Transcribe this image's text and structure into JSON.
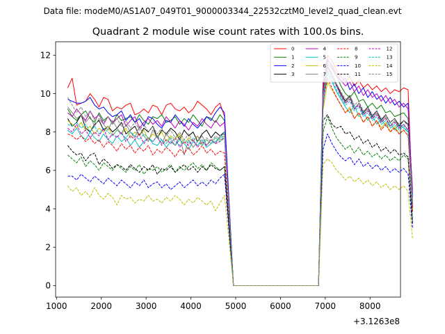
{
  "chart_data": {
    "type": "line",
    "suptitle": "Data file: modeM0/AS1A07_049T01_9000003344_22532cztM0_level2_quad_clean.evt",
    "title": "Quadrant 2 module wise count rates with 100.0s bins.",
    "xlabel": "",
    "ylabel": "",
    "x_offset_label": "+3.1263e8",
    "xlim": [
      980,
      8680
    ],
    "ylim": [
      -0.6,
      12.7
    ],
    "xticks": [
      1000,
      2000,
      3000,
      4000,
      5000,
      6000,
      7000,
      8000
    ],
    "xtick_labels": [
      "1000",
      "2000",
      "3000",
      "4000",
      "5000",
      "6000",
      "7000",
      "8000"
    ],
    "yticks": [
      0,
      2,
      4,
      6,
      8,
      10,
      12
    ],
    "ytick_labels": [
      "0",
      "2",
      "4",
      "6",
      "8",
      "10",
      "12"
    ],
    "legend_position": "top-right",
    "legend_columns": 4,
    "x_start": 1250,
    "x_step": 100,
    "gap_start": 4950,
    "gap_end": 6850,
    "series": [
      {
        "name": "0",
        "color": "#ff0000",
        "dash": "solid",
        "block1_values": [
          10.3,
          10.8,
          9.4,
          9.5,
          9.6,
          10.0,
          9.7,
          9.3,
          9.8,
          9.7,
          9.1,
          9.3,
          9.2,
          9.4,
          9.5,
          8.9,
          9.0,
          9.2,
          9.0,
          9.4,
          9.3,
          8.9,
          9.4,
          9.5,
          9.2,
          9.1,
          9.3,
          9.0,
          9.2,
          9.6,
          9.4,
          9.2,
          8.9,
          9.3,
          9.5,
          8.8
        ],
        "block2_values": [
          10.2,
          12.0,
          11.7,
          11.2,
          10.9,
          10.6,
          10.9,
          10.4,
          10.7,
          10.3,
          10.5,
          10.2,
          10.4,
          10.1,
          10.3,
          10.0,
          10.2,
          10.1,
          10.3,
          10.2,
          4.0
        ]
      },
      {
        "name": "1",
        "color": "#008000",
        "dash": "solid",
        "block1_values": [
          9.2,
          8.8,
          8.6,
          8.9,
          9.1,
          8.7,
          8.5,
          9.0,
          8.6,
          8.8,
          8.4,
          8.9,
          8.6,
          8.7,
          8.8,
          8.5,
          8.9,
          8.6,
          8.4,
          8.8,
          8.7,
          8.9,
          8.5,
          8.6,
          8.8,
          8.4,
          8.7,
          8.5,
          8.9,
          8.6,
          8.3,
          8.8,
          8.7,
          8.5,
          8.9,
          8.6
        ],
        "block2_values": [
          10.0,
          11.6,
          11.3,
          10.9,
          10.4,
          10.0,
          9.8,
          10.1,
          9.6,
          9.7,
          9.3,
          9.5,
          9.2,
          9.4,
          9.0,
          9.1,
          8.8,
          8.9,
          9.0,
          8.7,
          5.0
        ]
      },
      {
        "name": "2",
        "color": "#0000ff",
        "dash": "solid",
        "block1_values": [
          9.7,
          9.6,
          9.5,
          9.5,
          9.6,
          9.8,
          9.4,
          9.2,
          9.3,
          9.0,
          8.8,
          8.9,
          9.1,
          8.6,
          8.9,
          8.5,
          8.7,
          8.3,
          8.8,
          8.7,
          8.4,
          8.2,
          8.6,
          8.5,
          8.9,
          8.6,
          8.3,
          8.7,
          8.4,
          8.2,
          8.5,
          8.8,
          8.6,
          9.0,
          9.3,
          9.0
        ],
        "block2_values": [
          10.6,
          11.8,
          11.4,
          11.0,
          10.6,
          10.8,
          10.2,
          10.5,
          10.0,
          10.3,
          9.8,
          10.1,
          9.7,
          9.9,
          9.5,
          9.8,
          9.4,
          9.6,
          9.3,
          9.5,
          4.6
        ]
      },
      {
        "name": "3",
        "color": "#000000",
        "dash": "solid",
        "block1_values": [
          8.7,
          8.3,
          8.5,
          8.9,
          8.2,
          8.0,
          8.4,
          8.6,
          8.1,
          8.3,
          8.0,
          8.2,
          8.5,
          7.9,
          8.1,
          8.3,
          7.8,
          8.2,
          8.0,
          8.3,
          7.7,
          8.1,
          7.9,
          8.2,
          8.0,
          7.6,
          8.1,
          7.8,
          8.0,
          7.5,
          7.9,
          8.1,
          7.7,
          8.0,
          7.8,
          8.0
        ],
        "block2_values": [
          9.4,
          11.4,
          11.0,
          10.5,
          10.0,
          9.6,
          9.9,
          9.2,
          9.5,
          9.0,
          9.3,
          8.8,
          9.1,
          8.6,
          8.9,
          8.5,
          8.7,
          8.3,
          8.6,
          8.4,
          4.2
        ]
      },
      {
        "name": "4",
        "color": "#bf00bf",
        "dash": "solid",
        "block1_values": [
          9.0,
          8.8,
          9.2,
          8.9,
          8.6,
          9.1,
          8.7,
          8.9,
          8.4,
          8.8,
          8.5,
          8.7,
          8.9,
          8.3,
          8.6,
          8.8,
          8.2,
          8.5,
          8.7,
          8.4,
          8.6,
          8.3,
          8.8,
          8.5,
          8.2,
          8.6,
          8.4,
          8.1,
          8.5,
          8.3,
          8.7,
          8.4,
          8.2,
          8.6,
          8.3,
          8.5
        ],
        "block2_values": [
          10.5,
          11.7,
          11.5,
          11.0,
          10.7,
          10.4,
          10.6,
          10.1,
          10.4,
          9.9,
          10.2,
          9.8,
          10.0,
          9.6,
          9.9,
          9.5,
          9.7,
          9.3,
          9.5,
          9.2,
          4.8
        ]
      },
      {
        "name": "5",
        "color": "#00bfbf",
        "dash": "solid",
        "block1_values": [
          8.1,
          7.9,
          8.2,
          7.8,
          7.6,
          8.0,
          7.7,
          7.5,
          7.9,
          7.6,
          7.4,
          7.8,
          7.5,
          7.7,
          7.3,
          7.6,
          7.2,
          7.5,
          7.7,
          7.4,
          7.3,
          7.6,
          7.2,
          7.5,
          7.3,
          7.6,
          7.4,
          7.1,
          7.5,
          7.3,
          7.6,
          7.2,
          7.4,
          7.5,
          7.7,
          8.0
        ],
        "block2_values": [
          9.5,
          11.0,
          10.6,
          10.1,
          9.7,
          9.3,
          9.0,
          9.4,
          8.8,
          9.1,
          8.6,
          8.9,
          8.4,
          8.7,
          8.3,
          8.5,
          8.1,
          8.4,
          8.2,
          8.0,
          4.4
        ]
      },
      {
        "name": "6",
        "color": "#bfbf00",
        "dash": "solid",
        "block1_values": [
          8.6,
          8.4,
          8.2,
          8.5,
          8.1,
          8.3,
          7.9,
          8.2,
          8.0,
          8.3,
          7.8,
          8.1,
          7.9,
          8.2,
          7.7,
          8.0,
          7.8,
          8.1,
          7.6,
          7.9,
          7.7,
          8.0,
          7.5,
          7.8,
          7.6,
          7.9,
          7.4,
          7.7,
          7.5,
          7.8,
          7.3,
          7.6,
          7.4,
          7.7,
          7.5,
          7.8
        ],
        "block2_values": [
          9.1,
          10.6,
          10.2,
          9.8,
          9.4,
          9.0,
          9.3,
          8.7,
          9.0,
          8.5,
          8.8,
          8.3,
          8.6,
          8.2,
          8.5,
          8.0,
          8.3,
          7.9,
          8.1,
          7.8,
          4.0
        ]
      },
      {
        "name": "7",
        "color": "#808080",
        "dash": "solid",
        "block1_values": [
          9.3,
          9.0,
          8.7,
          8.9,
          8.5,
          8.8,
          8.3,
          8.7,
          8.4,
          8.1,
          8.6,
          8.2,
          7.9,
          8.4,
          8.0,
          7.7,
          8.3,
          7.8,
          7.5,
          8.1,
          7.7,
          7.4,
          7.9,
          7.6,
          7.3,
          7.8,
          6.8,
          7.6,
          7.2,
          7.5,
          7.8,
          7.3,
          7.6,
          7.4,
          7.8,
          7.9
        ],
        "block2_values": [
          9.8,
          11.2,
          10.8,
          10.4,
          9.9,
          9.5,
          9.8,
          9.2,
          9.5,
          8.9,
          9.2,
          8.7,
          9.0,
          8.5,
          8.8,
          8.3,
          8.6,
          8.2,
          8.4,
          8.1,
          4.3
        ]
      },
      {
        "name": "8",
        "color": "#ff0000",
        "dash": "dashed",
        "block1_values": [
          7.9,
          7.8,
          7.6,
          7.8,
          7.5,
          7.7,
          7.4,
          7.6,
          7.2,
          7.5,
          7.3,
          7.0,
          7.4,
          7.1,
          7.3,
          6.9,
          7.2,
          7.0,
          7.3,
          6.8,
          7.1,
          6.9,
          7.2,
          7.0,
          6.7,
          7.1,
          6.9,
          7.2,
          6.8,
          7.0,
          7.3,
          6.9,
          7.1,
          6.8,
          7.0,
          6.9
        ],
        "block2_values": [
          9.6,
          10.8,
          10.3,
          9.8,
          9.4,
          9.0,
          9.2,
          8.7,
          9.0,
          8.5,
          8.8,
          8.3,
          8.6,
          8.1,
          8.4,
          8.0,
          8.2,
          7.9,
          8.1,
          7.8,
          3.8
        ]
      },
      {
        "name": "9",
        "color": "#008000",
        "dash": "dashed",
        "block1_values": [
          6.8,
          6.6,
          6.4,
          6.7,
          6.2,
          6.5,
          6.3,
          6.0,
          6.4,
          6.2,
          6.0,
          6.3,
          6.1,
          5.9,
          6.2,
          6.0,
          6.3,
          5.8,
          6.1,
          6.0,
          6.2,
          5.9,
          6.1,
          6.3,
          5.9,
          6.2,
          6.0,
          6.2,
          6.4,
          6.1,
          6.3,
          6.0,
          6.4,
          6.2,
          6.0,
          6.2
        ],
        "block2_values": [
          8.0,
          8.8,
          8.2,
          7.7,
          7.4,
          7.1,
          7.3,
          6.9,
          7.2,
          6.8,
          7.0,
          6.7,
          6.9,
          6.6,
          6.8,
          6.5,
          6.7,
          6.5,
          6.8,
          6.6,
          3.4
        ]
      },
      {
        "name": "10",
        "color": "#0000ff",
        "dash": "dashed",
        "block1_values": [
          5.7,
          5.7,
          5.5,
          5.8,
          5.6,
          5.4,
          5.7,
          5.5,
          5.3,
          5.6,
          5.4,
          5.2,
          5.5,
          5.3,
          5.1,
          5.4,
          5.2,
          5.5,
          5.1,
          5.3,
          5.4,
          5.1,
          5.3,
          5.0,
          5.2,
          5.4,
          5.1,
          5.3,
          5.5,
          5.2,
          5.4,
          5.2,
          5.5,
          5.3,
          5.6,
          5.8
        ],
        "block2_values": [
          7.1,
          7.9,
          7.4,
          7.0,
          6.7,
          6.5,
          6.7,
          6.3,
          6.6,
          6.2,
          6.4,
          6.1,
          6.3,
          6.0,
          6.2,
          5.9,
          6.1,
          5.9,
          6.1,
          5.8,
          3.0
        ]
      },
      {
        "name": "11",
        "color": "#000000",
        "dash": "dashed",
        "block1_values": [
          7.3,
          7.0,
          6.8,
          6.9,
          6.5,
          6.8,
          6.9,
          6.3,
          6.6,
          6.4,
          6.1,
          6.3,
          6.2,
          6.0,
          6.3,
          6.1,
          5.9,
          6.2,
          6.0,
          6.3,
          5.8,
          6.1,
          6.0,
          6.2,
          5.9,
          6.1,
          6.3,
          6.0,
          6.2,
          5.9,
          6.2,
          6.0,
          6.3,
          6.1,
          6.0,
          6.2
        ],
        "block2_values": [
          8.6,
          8.9,
          8.4,
          8.2,
          8.3,
          7.9,
          8.0,
          7.6,
          7.8,
          7.4,
          7.6,
          7.2,
          7.4,
          7.0,
          7.2,
          6.9,
          7.1,
          6.8,
          6.9,
          6.7,
          3.2
        ]
      },
      {
        "name": "12",
        "color": "#bf00bf",
        "dash": "dashed",
        "block1_values": [
          8.2,
          8.0,
          8.4,
          7.9,
          8.1,
          7.7,
          8.0,
          7.8,
          8.2,
          7.6,
          7.9,
          7.7,
          8.0,
          7.5,
          7.8,
          7.6,
          7.9,
          7.4,
          7.7,
          7.5,
          7.8,
          7.3,
          7.6,
          7.4,
          7.7,
          7.2,
          7.5,
          7.3,
          7.6,
          7.2,
          7.5,
          7.3,
          7.6,
          7.4,
          7.5,
          7.7
        ],
        "block2_values": [
          9.3,
          11.5,
          11.0,
          10.4,
          9.9,
          9.5,
          9.7,
          9.2,
          9.4,
          8.9,
          9.1,
          8.7,
          8.9,
          8.5,
          8.7,
          8.3,
          8.5,
          8.2,
          8.4,
          8.1,
          4.1
        ]
      },
      {
        "name": "13",
        "color": "#00bfbf",
        "dash": "dashed",
        "block1_values": [
          8.4,
          8.3,
          8.5,
          8.2,
          8.4,
          8.0,
          8.3,
          7.9,
          8.2,
          8.0,
          7.8,
          8.1,
          7.9,
          7.7,
          8.0,
          7.8,
          7.6,
          7.9,
          7.7,
          7.5,
          7.8,
          7.6,
          7.4,
          7.7,
          7.5,
          7.3,
          7.6,
          7.4,
          7.7,
          7.5,
          7.3,
          7.6,
          7.4,
          7.7,
          7.5,
          7.8
        ],
        "block2_values": [
          9.6,
          11.1,
          10.7,
          10.2,
          9.8,
          9.4,
          9.6,
          9.1,
          9.3,
          8.8,
          9.0,
          8.6,
          8.8,
          8.4,
          8.6,
          8.2,
          8.4,
          8.1,
          8.3,
          8.0,
          4.2
        ]
      },
      {
        "name": "14",
        "color": "#bfbf00",
        "dash": "dashed",
        "block1_values": [
          5.2,
          4.9,
          5.1,
          4.7,
          4.9,
          4.6,
          5.1,
          4.7,
          4.5,
          4.8,
          4.6,
          4.2,
          4.7,
          4.5,
          4.6,
          4.3,
          4.5,
          4.4,
          4.7,
          4.4,
          4.5,
          4.3,
          4.6,
          4.4,
          4.7,
          4.5,
          4.2,
          4.5,
          4.3,
          4.6,
          4.4,
          4.2,
          4.4,
          3.9,
          4.3,
          4.7
        ],
        "block2_values": [
          6.3,
          6.6,
          6.4,
          6.0,
          5.8,
          5.5,
          5.7,
          5.4,
          5.6,
          5.3,
          5.5,
          5.2,
          5.4,
          5.1,
          5.3,
          5.0,
          5.2,
          5.0,
          5.2,
          4.9,
          2.4
        ]
      },
      {
        "name": "15",
        "color": "#808080",
        "dash": "dashed",
        "block1_values": [
          9.8,
          9.4,
          9.0,
          9.3,
          8.8,
          9.1,
          8.6,
          8.9,
          8.5,
          8.8,
          8.4,
          8.7,
          8.3,
          8.6,
          8.2,
          8.5,
          8.1,
          8.4,
          8.0,
          8.3,
          7.9,
          8.2,
          7.8,
          8.1,
          7.7,
          8.0,
          7.6,
          7.9,
          7.5,
          7.8,
          7.4,
          7.7,
          7.5,
          7.8,
          7.6,
          7.9
        ],
        "block2_values": [
          9.9,
          11.3,
          10.9,
          10.5,
          10.1,
          9.7,
          9.9,
          9.4,
          9.6,
          9.1,
          9.3,
          8.9,
          9.1,
          8.7,
          8.9,
          8.5,
          8.7,
          8.4,
          8.6,
          8.3,
          4.3
        ]
      }
    ]
  }
}
